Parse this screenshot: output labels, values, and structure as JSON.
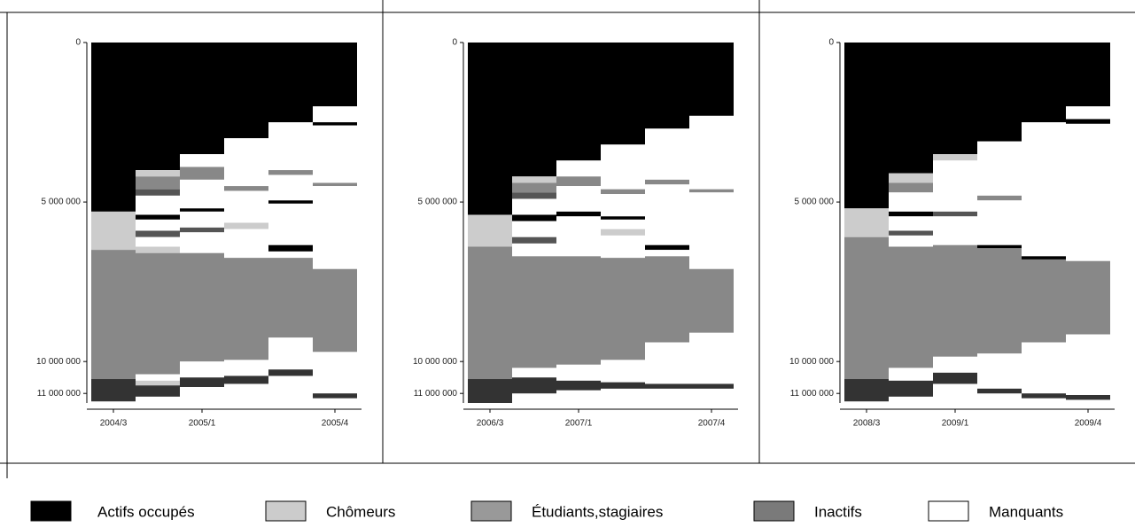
{
  "chart_data": [
    {
      "type": "sequence",
      "categories": [
        "2004/3",
        null,
        "2005/1",
        null,
        null,
        "2005/4"
      ],
      "ylim": [
        0,
        11300000
      ],
      "yticks": [
        0,
        {
          "value": 5000000,
          "label": "5 000 000"
        },
        {
          "value": 10000000,
          "label": "10 000 000"
        },
        {
          "value": 11000000,
          "label": "11 000 000"
        }
      ],
      "columns": [
        [
          {
            "color": "#000000",
            "value": 5300000
          },
          {
            "color": "#cccccc",
            "value": 1200000
          },
          {
            "color": "#888888",
            "value": 4050000
          },
          {
            "color": "#333333",
            "value": 700000
          }
        ],
        [
          {
            "color": "#000000",
            "value": 4000000
          },
          {
            "color": "#cccccc",
            "value": 200000
          },
          {
            "color": "#888888",
            "value": 400000
          },
          {
            "color": "#555555",
            "value": 200000
          },
          {
            "color": "#ffffff",
            "value": 600000
          },
          {
            "color": "#000000",
            "value": 150000
          },
          {
            "color": "#ffffff",
            "value": 350000
          },
          {
            "color": "#555555",
            "value": 200000
          },
          {
            "color": "#ffffff",
            "value": 300000
          },
          {
            "color": "#cccccc",
            "value": 200000
          },
          {
            "color": "#888888",
            "value": 3800000
          },
          {
            "color": "#ffffff",
            "value": 200000
          },
          {
            "color": "#cccccc",
            "value": 150000
          },
          {
            "color": "#333333",
            "value": 350000
          }
        ],
        [
          {
            "color": "#000000",
            "value": 3500000
          },
          {
            "color": "#ffffff",
            "value": 400000
          },
          {
            "color": "#888888",
            "value": 400000
          },
          {
            "color": "#ffffff",
            "value": 900000
          },
          {
            "color": "#000000",
            "value": 100000
          },
          {
            "color": "#ffffff",
            "value": 500000
          },
          {
            "color": "#555555",
            "value": 150000
          },
          {
            "color": "#ffffff",
            "value": 650000
          },
          {
            "color": "#888888",
            "value": 3400000
          },
          {
            "color": "#ffffff",
            "value": 500000
          },
          {
            "color": "#333333",
            "value": 300000
          }
        ],
        [
          {
            "color": "#000000",
            "value": 3000000
          },
          {
            "color": "#ffffff",
            "value": 1500000
          },
          {
            "color": "#888888",
            "value": 150000
          },
          {
            "color": "#ffffff",
            "value": 1000000
          },
          {
            "color": "#cccccc",
            "value": 200000
          },
          {
            "color": "#ffffff",
            "value": 900000
          },
          {
            "color": "#888888",
            "value": 3200000
          },
          {
            "color": "#ffffff",
            "value": 500000
          },
          {
            "color": "#333333",
            "value": 250000
          }
        ],
        [
          {
            "color": "#000000",
            "value": 2500000
          },
          {
            "color": "#ffffff",
            "value": 1500000
          },
          {
            "color": "#888888",
            "value": 150000
          },
          {
            "color": "#ffffff",
            "value": 800000
          },
          {
            "color": "#000000",
            "value": 100000
          },
          {
            "color": "#ffffff",
            "value": 1300000
          },
          {
            "color": "#000000",
            "value": 200000
          },
          {
            "color": "#ffffff",
            "value": 200000
          },
          {
            "color": "#888888",
            "value": 2500000
          },
          {
            "color": "#ffffff",
            "value": 1000000
          },
          {
            "color": "#333333",
            "value": 200000
          }
        ],
        [
          {
            "color": "#000000",
            "value": 2000000
          },
          {
            "color": "#ffffff",
            "value": 500000
          },
          {
            "color": "#000000",
            "value": 100000
          },
          {
            "color": "#ffffff",
            "value": 1800000
          },
          {
            "color": "#888888",
            "value": 100000
          },
          {
            "color": "#ffffff",
            "value": 2600000
          },
          {
            "color": "#888888",
            "value": 2600000
          },
          {
            "color": "#ffffff",
            "value": 1300000
          },
          {
            "color": "#333333",
            "value": 150000
          }
        ]
      ]
    },
    {
      "type": "sequence",
      "categories": [
        "2006/3",
        null,
        "2007/1",
        null,
        null,
        "2007/4"
      ],
      "ylim": [
        0,
        11300000
      ],
      "yticks": [
        0,
        {
          "value": 5000000,
          "label": "5 000 000"
        },
        {
          "value": 10000000,
          "label": "10 000 000"
        },
        {
          "value": 11000000,
          "label": "11 000 000"
        }
      ],
      "columns": [
        [
          {
            "color": "#000000",
            "value": 5400000
          },
          {
            "color": "#cccccc",
            "value": 1000000
          },
          {
            "color": "#888888",
            "value": 4150000
          },
          {
            "color": "#333333",
            "value": 750000
          }
        ],
        [
          {
            "color": "#000000",
            "value": 4200000
          },
          {
            "color": "#cccccc",
            "value": 200000
          },
          {
            "color": "#888888",
            "value": 300000
          },
          {
            "color": "#555555",
            "value": 200000
          },
          {
            "color": "#ffffff",
            "value": 500000
          },
          {
            "color": "#000000",
            "value": 200000
          },
          {
            "color": "#ffffff",
            "value": 500000
          },
          {
            "color": "#555555",
            "value": 200000
          },
          {
            "color": "#ffffff",
            "value": 400000
          },
          {
            "color": "#888888",
            "value": 3500000
          },
          {
            "color": "#ffffff",
            "value": 300000
          },
          {
            "color": "#333333",
            "value": 500000
          }
        ],
        [
          {
            "color": "#000000",
            "value": 3700000
          },
          {
            "color": "#ffffff",
            "value": 500000
          },
          {
            "color": "#888888",
            "value": 300000
          },
          {
            "color": "#ffffff",
            "value": 800000
          },
          {
            "color": "#000000",
            "value": 150000
          },
          {
            "color": "#ffffff",
            "value": 1250000
          },
          {
            "color": "#888888",
            "value": 3400000
          },
          {
            "color": "#ffffff",
            "value": 500000
          },
          {
            "color": "#333333",
            "value": 300000
          }
        ],
        [
          {
            "color": "#000000",
            "value": 3200000
          },
          {
            "color": "#ffffff",
            "value": 1400000
          },
          {
            "color": "#888888",
            "value": 150000
          },
          {
            "color": "#ffffff",
            "value": 700000
          },
          {
            "color": "#000000",
            "value": 100000
          },
          {
            "color": "#ffffff",
            "value": 300000
          },
          {
            "color": "#cccccc",
            "value": 200000
          },
          {
            "color": "#ffffff",
            "value": 700000
          },
          {
            "color": "#888888",
            "value": 3200000
          },
          {
            "color": "#ffffff",
            "value": 700000
          },
          {
            "color": "#333333",
            "value": 200000
          }
        ],
        [
          {
            "color": "#000000",
            "value": 2700000
          },
          {
            "color": "#ffffff",
            "value": 1600000
          },
          {
            "color": "#888888",
            "value": 150000
          },
          {
            "color": "#ffffff",
            "value": 1900000
          },
          {
            "color": "#000000",
            "value": 150000
          },
          {
            "color": "#ffffff",
            "value": 200000
          },
          {
            "color": "#888888",
            "value": 2700000
          },
          {
            "color": "#ffffff",
            "value": 1300000
          },
          {
            "color": "#333333",
            "value": 150000
          }
        ],
        [
          {
            "color": "#000000",
            "value": 2300000
          },
          {
            "color": "#ffffff",
            "value": 2300000
          },
          {
            "color": "#888888",
            "value": 100000
          },
          {
            "color": "#ffffff",
            "value": 2400000
          },
          {
            "color": "#888888",
            "value": 2000000
          },
          {
            "color": "#ffffff",
            "value": 1600000
          },
          {
            "color": "#333333",
            "value": 150000
          }
        ]
      ]
    },
    {
      "type": "sequence",
      "categories": [
        "2008/3",
        null,
        "2009/1",
        null,
        null,
        "2009/4"
      ],
      "ylim": [
        0,
        11300000
      ],
      "yticks": [
        0,
        {
          "value": 5000000,
          "label": "5 000 000"
        },
        {
          "value": 10000000,
          "label": "10 000 000"
        },
        {
          "value": 11000000,
          "label": "11 000 000"
        }
      ],
      "columns": [
        [
          {
            "color": "#000000",
            "value": 5200000
          },
          {
            "color": "#cccccc",
            "value": 900000
          },
          {
            "color": "#888888",
            "value": 4450000
          },
          {
            "color": "#333333",
            "value": 700000
          }
        ],
        [
          {
            "color": "#000000",
            "value": 4100000
          },
          {
            "color": "#cccccc",
            "value": 300000
          },
          {
            "color": "#888888",
            "value": 300000
          },
          {
            "color": "#ffffff",
            "value": 600000
          },
          {
            "color": "#000000",
            "value": 150000
          },
          {
            "color": "#ffffff",
            "value": 450000
          },
          {
            "color": "#555555",
            "value": 150000
          },
          {
            "color": "#ffffff",
            "value": 350000
          },
          {
            "color": "#888888",
            "value": 3800000
          },
          {
            "color": "#ffffff",
            "value": 400000
          },
          {
            "color": "#333333",
            "value": 500000
          }
        ],
        [
          {
            "color": "#000000",
            "value": 3500000
          },
          {
            "color": "#cccccc",
            "value": 200000
          },
          {
            "color": "#ffffff",
            "value": 1600000
          },
          {
            "color": "#555555",
            "value": 150000
          },
          {
            "color": "#ffffff",
            "value": 900000
          },
          {
            "color": "#888888",
            "value": 3500000
          },
          {
            "color": "#ffffff",
            "value": 500000
          },
          {
            "color": "#333333",
            "value": 350000
          }
        ],
        [
          {
            "color": "#000000",
            "value": 3100000
          },
          {
            "color": "#ffffff",
            "value": 1700000
          },
          {
            "color": "#888888",
            "value": 150000
          },
          {
            "color": "#ffffff",
            "value": 1400000
          },
          {
            "color": "#000000",
            "value": 100000
          },
          {
            "color": "#888888",
            "value": 3300000
          },
          {
            "color": "#ffffff",
            "value": 1100000
          },
          {
            "color": "#333333",
            "value": 150000
          }
        ],
        [
          {
            "color": "#000000",
            "value": 2500000
          },
          {
            "color": "#ffffff",
            "value": 4200000
          },
          {
            "color": "#000000",
            "value": 100000
          },
          {
            "color": "#888888",
            "value": 2600000
          },
          {
            "color": "#ffffff",
            "value": 1600000
          },
          {
            "color": "#333333",
            "value": 150000
          }
        ],
        [
          {
            "color": "#000000",
            "value": 2000000
          },
          {
            "color": "#ffffff",
            "value": 400000
          },
          {
            "color": "#000000",
            "value": 150000
          },
          {
            "color": "#ffffff",
            "value": 4300000
          },
          {
            "color": "#888888",
            "value": 2300000
          },
          {
            "color": "#ffffff",
            "value": 1900000
          },
          {
            "color": "#333333",
            "value": 150000
          }
        ]
      ]
    }
  ],
  "legend": [
    {
      "name": "Actifs occupés",
      "color": "#000000"
    },
    {
      "name": "Chômeurs",
      "color": "#cccccc"
    },
    {
      "name": "Étudiants,stagiaires",
      "color": "#999999"
    },
    {
      "name": "Inactifs",
      "color": "#7a7a7a"
    },
    {
      "name": "Manquants",
      "color": "#ffffff"
    }
  ]
}
